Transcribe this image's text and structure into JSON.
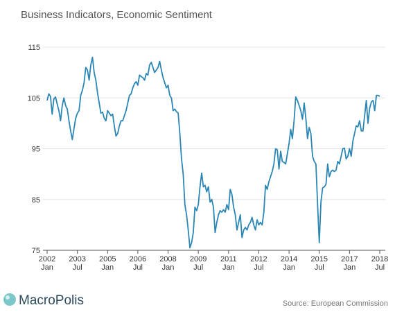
{
  "chart_data": {
    "type": "line",
    "title": "Business Indicators, Economic Sentiment",
    "source": "Source: European Commission",
    "brand": "MacroPolis",
    "categories": [
      "2002\nJan",
      null,
      null,
      null,
      null,
      null,
      null,
      null,
      null,
      null,
      null,
      null,
      null,
      null,
      null,
      null,
      null,
      null,
      "2003\nJul",
      null,
      null,
      null,
      null,
      null,
      null,
      null,
      null,
      null,
      null,
      null,
      null,
      null,
      null,
      null,
      null,
      null,
      "2005\nJan",
      null,
      null,
      null,
      null,
      null,
      null,
      null,
      null,
      null,
      null,
      null,
      null,
      null,
      null,
      null,
      null,
      null,
      "2006\nJul",
      null,
      null,
      null,
      null,
      null,
      null,
      null,
      null,
      null,
      null,
      null,
      null,
      null,
      null,
      null,
      null,
      null,
      "2008\nJan",
      null,
      null,
      null,
      null,
      null,
      null,
      null,
      null,
      null,
      null,
      null,
      null,
      null,
      null,
      null,
      null,
      null,
      "2009\nJul",
      null,
      null,
      null,
      null,
      null,
      null,
      null,
      null,
      null,
      null,
      null,
      null,
      null,
      null,
      null,
      null,
      null,
      "2011\nJan",
      null,
      null,
      null,
      null,
      null,
      null,
      null,
      null,
      null,
      null,
      null,
      null,
      null,
      null,
      null,
      null,
      null,
      "2012\nJul",
      null,
      null,
      null,
      null,
      null,
      null,
      null,
      null,
      null,
      null,
      null,
      null,
      null,
      null,
      null,
      null,
      null,
      "2014\nJan",
      null,
      null,
      null,
      null,
      null,
      null,
      null,
      null,
      null,
      null,
      null,
      null,
      null,
      null,
      null,
      null,
      null,
      "2015\nJul",
      null,
      null,
      null,
      null,
      null,
      null,
      null,
      null,
      null,
      null,
      null,
      null,
      null,
      null,
      null,
      null,
      null,
      "2017\nJan",
      null,
      null,
      null,
      null,
      null,
      null,
      null,
      null,
      null,
      null,
      null,
      null,
      null,
      null,
      null,
      null,
      null,
      "2018\nJul"
    ],
    "values": [
      104.5,
      105.8,
      105.3,
      101.8,
      104.8,
      105.2,
      103.8,
      102.5,
      100.5,
      103.5,
      105,
      103.5,
      102.8,
      100.5,
      98.5,
      96.8,
      99,
      101,
      102,
      102.5,
      105.5,
      106.5,
      108,
      111,
      110.5,
      108.5,
      111.5,
      113,
      110,
      108.5,
      106,
      104,
      102,
      102.2,
      101,
      100.5,
      102.5,
      102,
      101.5,
      101.8,
      99.5,
      97.5,
      98,
      99.5,
      100.5,
      100.5,
      101.5,
      102.5,
      104,
      105.5,
      105.8,
      107,
      107.8,
      108.2,
      107.5,
      109.5,
      109.2,
      109,
      108.5,
      109.8,
      109.5,
      111.5,
      112,
      111,
      110,
      110.5,
      111,
      112.2,
      110.5,
      109,
      108,
      107,
      107.5,
      105.5,
      105,
      102.5,
      102.8,
      102.3,
      102,
      98,
      93,
      90,
      84,
      82,
      79,
      75.5,
      76.5,
      78.5,
      83.5,
      82.8,
      84,
      87.5,
      90.2,
      87.5,
      87.8,
      86.5,
      87.5,
      84.5,
      85,
      83.5,
      78.5,
      80.5,
      82,
      82.8,
      82.5,
      83,
      82.5,
      84,
      83,
      87,
      86,
      83.5,
      82,
      79,
      80.5,
      82,
      77.5,
      79,
      79.5,
      79,
      80,
      80.5,
      81.5,
      80,
      79,
      81,
      80,
      80.5,
      80,
      82.5,
      87.8,
      87,
      88.5,
      89.5,
      90.5,
      92,
      95,
      94.8,
      91,
      94.5,
      92.5,
      92.3,
      92,
      94,
      96,
      98.8,
      97,
      100.5,
      105.2,
      104.5,
      103.5,
      102.5,
      100.8,
      104,
      101,
      97,
      99.2,
      98,
      93.5,
      92.5,
      92,
      84,
      76.5,
      84.5,
      87.3,
      87.5,
      88,
      92,
      89.5,
      90.5,
      90.8,
      90.5,
      90.8,
      92.5,
      92,
      93.5,
      95,
      95.1,
      93,
      93.5,
      95,
      93.5,
      96.5,
      98,
      99.5,
      99.3,
      100.5,
      98.5,
      98.5,
      101.5,
      104.5,
      100,
      103,
      104.2,
      104.5,
      102.5,
      105.5,
      105.5,
      105.3
    ],
    "color": "#2a86b5",
    "ylim": [
      75,
      115
    ],
    "yticks": [
      75,
      85,
      95,
      105,
      115
    ],
    "grid": true
  }
}
